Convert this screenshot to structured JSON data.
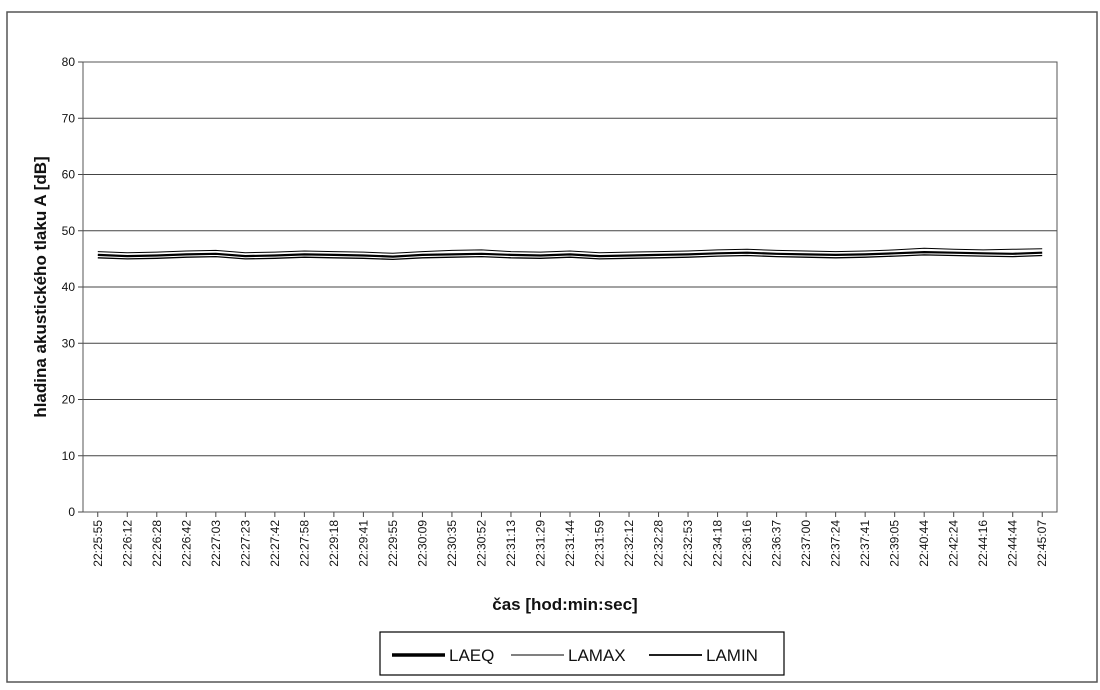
{
  "chart_data": {
    "type": "line",
    "xlabel": "čas [hod:min:sec]",
    "ylabel": "hladina akustického tlaku A [dB]",
    "ylim": [
      0,
      80
    ],
    "y_ticks": [
      0,
      10,
      20,
      30,
      40,
      50,
      60,
      70,
      80
    ],
    "grid": true,
    "legend_position": "bottom",
    "categories": [
      "22:25:55",
      "22:26:12",
      "22:26:28",
      "22:26:42",
      "22:27:03",
      "22:27:23",
      "22:27:42",
      "22:27:58",
      "22:29:18",
      "22:29:41",
      "22:29:55",
      "22:30:09",
      "22:30:35",
      "22:30:52",
      "22:31:13",
      "22:31:29",
      "22:31:44",
      "22:31:59",
      "22:32:12",
      "22:32:28",
      "22:32:53",
      "22:34:18",
      "22:36:16",
      "22:36:37",
      "22:37:00",
      "22:37:24",
      "22:37:41",
      "22:39:05",
      "22:40:44",
      "22:42:24",
      "22:44:16",
      "22:44:44",
      "22:45:07"
    ],
    "series": [
      {
        "name": "LAEQ",
        "stroke": "#000000",
        "values": [
          45.7,
          45.5,
          45.6,
          45.8,
          45.9,
          45.5,
          45.6,
          45.8,
          45.7,
          45.6,
          45.4,
          45.7,
          45.8,
          45.9,
          45.7,
          45.6,
          45.8,
          45.5,
          45.6,
          45.7,
          45.8,
          46.0,
          46.1,
          45.9,
          45.8,
          45.7,
          45.8,
          46.0,
          46.2,
          46.1,
          46.0,
          45.9,
          46.1
        ]
      },
      {
        "name": "LAMAX",
        "stroke": "#000000",
        "values": [
          46.3,
          46.1,
          46.2,
          46.4,
          46.5,
          46.1,
          46.2,
          46.4,
          46.3,
          46.2,
          46.0,
          46.3,
          46.5,
          46.6,
          46.3,
          46.2,
          46.4,
          46.1,
          46.2,
          46.3,
          46.4,
          46.6,
          46.7,
          46.5,
          46.4,
          46.3,
          46.4,
          46.6,
          46.9,
          46.7,
          46.6,
          46.7,
          46.8
        ]
      },
      {
        "name": "LAMIN",
        "stroke": "#000000",
        "values": [
          45.2,
          45.0,
          45.1,
          45.3,
          45.4,
          45.0,
          45.1,
          45.3,
          45.2,
          45.1,
          44.9,
          45.2,
          45.3,
          45.4,
          45.2,
          45.1,
          45.3,
          45.0,
          45.1,
          45.2,
          45.3,
          45.5,
          45.6,
          45.4,
          45.3,
          45.2,
          45.3,
          45.5,
          45.7,
          45.6,
          45.5,
          45.4,
          45.6
        ]
      }
    ]
  }
}
